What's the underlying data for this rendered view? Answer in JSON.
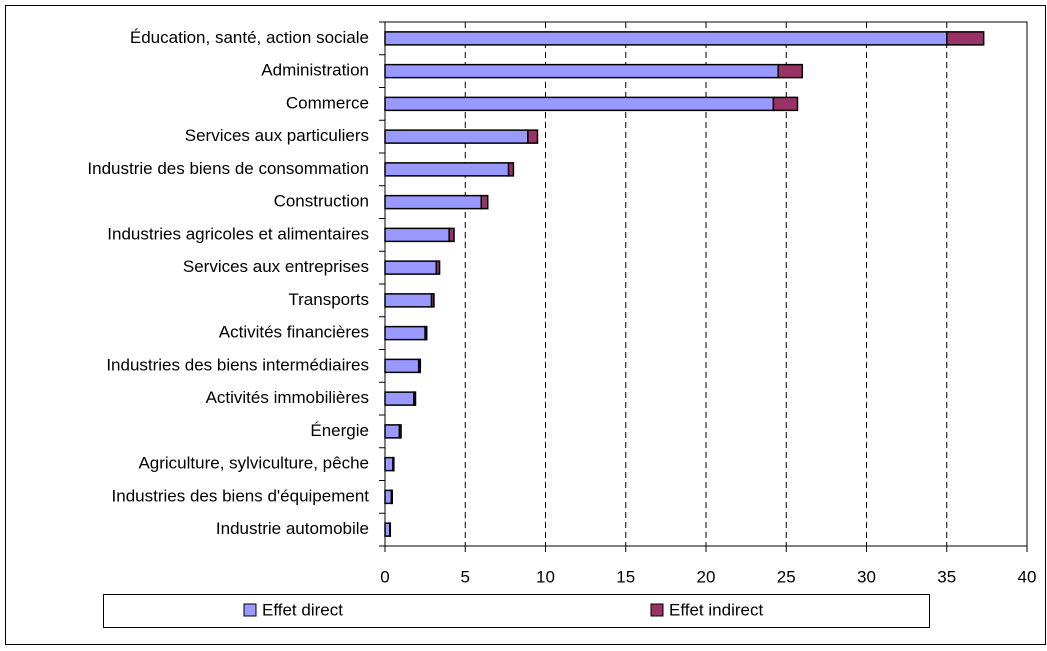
{
  "chart_data": {
    "type": "stacked-barh",
    "categories": [
      "Éducation, santé, action sociale",
      "Administration",
      "Commerce",
      "Services aux particuliers",
      "Industrie des biens de consommation",
      "Construction",
      "Industries agricoles et alimentaires",
      "Services aux entreprises",
      "Transports",
      "Activités financières",
      "Industries des biens intermédiaires",
      "Activités immobilières",
      "Énergie",
      "Agriculture, sylviculture, pêche",
      "Industries des biens d'équipement",
      "Industrie automobile"
    ],
    "series": [
      {
        "name": "Effet direct",
        "color": "#9999ff",
        "values": [
          35.0,
          24.5,
          24.2,
          8.9,
          7.7,
          6.0,
          4.0,
          3.2,
          2.9,
          2.5,
          2.1,
          1.8,
          0.9,
          0.5,
          0.4,
          0.3
        ]
      },
      {
        "name": "Effet indirect",
        "color": "#993366",
        "values": [
          2.3,
          1.5,
          1.5,
          0.6,
          0.3,
          0.4,
          0.3,
          0.2,
          0.15,
          0.1,
          0.1,
          0.1,
          0.1,
          0.05,
          0.05,
          0.03
        ]
      }
    ],
    "xlim": [
      0,
      40
    ],
    "xticks": [
      0,
      5,
      10,
      15,
      20,
      25,
      30,
      35,
      40
    ],
    "grid": true,
    "legend": "bottom"
  }
}
